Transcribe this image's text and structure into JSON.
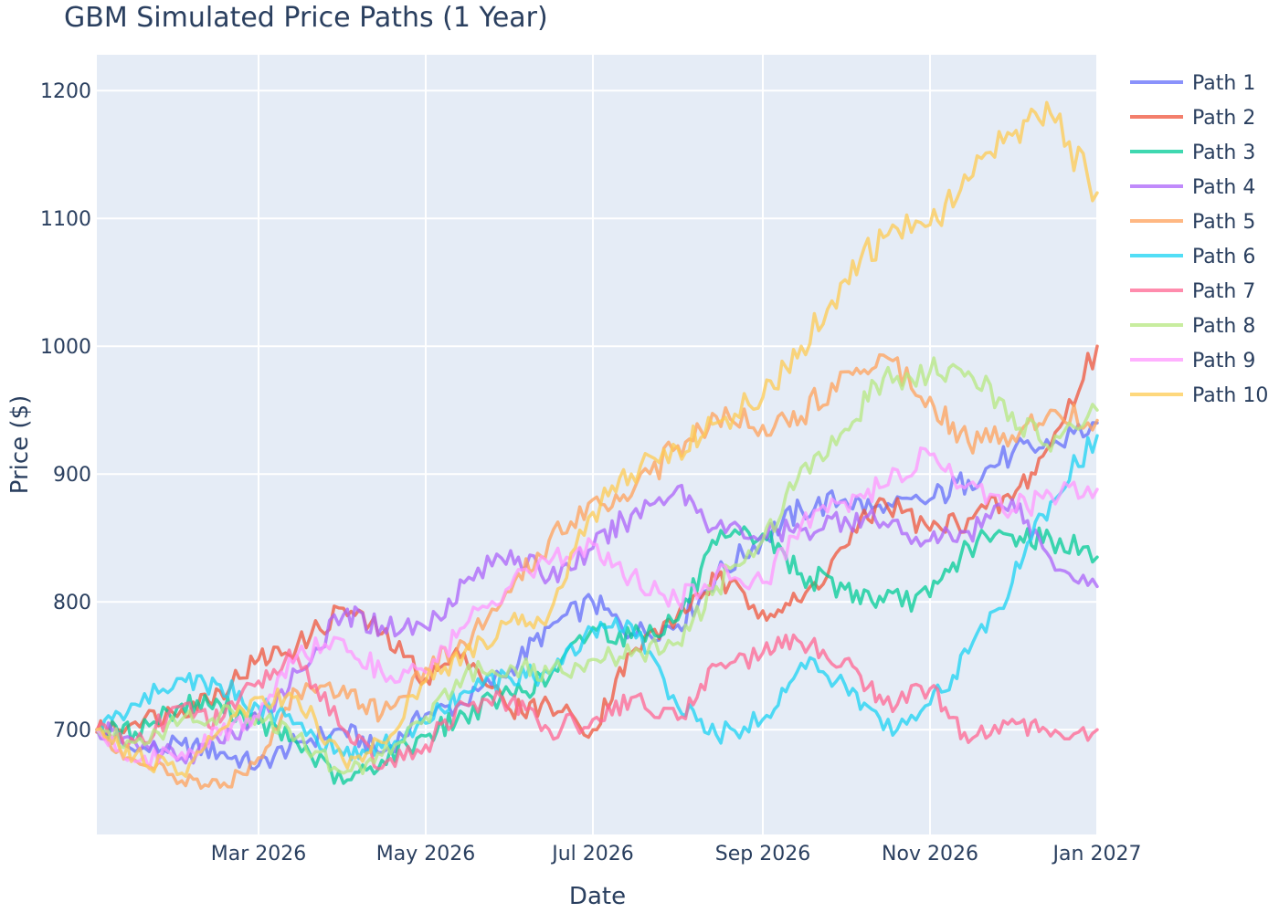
{
  "chart_data": {
    "type": "line",
    "title": "GBM Simulated Price Paths (1 Year)",
    "xlabel": "Date",
    "ylabel": "Price ($)",
    "x_range": [
      "2026-01-01",
      "2027-01-01"
    ],
    "ylim": [
      618,
      1228
    ],
    "x_ticks": [
      {
        "date": "2026-03-01",
        "label": "Mar 2026"
      },
      {
        "date": "2026-05-01",
        "label": "May 2026"
      },
      {
        "date": "2026-07-01",
        "label": "Jul 2026"
      },
      {
        "date": "2026-09-01",
        "label": "Sep 2026"
      },
      {
        "date": "2026-11-01",
        "label": "Nov 2026"
      },
      {
        "date": "2027-01-01",
        "label": "Jan 2027"
      }
    ],
    "y_ticks": [
      700,
      800,
      900,
      1000,
      1100,
      1200
    ],
    "grid": true,
    "legend_position": "right",
    "x_dates": [
      "2026-01-01",
      "2026-01-15",
      "2026-02-01",
      "2026-02-15",
      "2026-03-01",
      "2026-03-15",
      "2026-04-01",
      "2026-04-15",
      "2026-05-01",
      "2026-05-15",
      "2026-06-01",
      "2026-06-15",
      "2026-07-01",
      "2026-07-15",
      "2026-08-01",
      "2026-08-15",
      "2026-09-01",
      "2026-09-15",
      "2026-10-01",
      "2026-10-15",
      "2026-11-01",
      "2026-11-15",
      "2026-12-01",
      "2026-12-15",
      "2027-01-01"
    ],
    "series": [
      {
        "name": "Path 1",
        "color": "#636efa",
        "values": [
          700,
          683,
          688,
          682,
          672,
          690,
          700,
          682,
          712,
          720,
          748,
          780,
          800,
          775,
          782,
          820,
          850,
          872,
          880,
          870,
          880,
          895,
          916,
          922,
          940
        ]
      },
      {
        "name": "Path 2",
        "color": "#ef553b",
        "values": [
          698,
          706,
          716,
          730,
          755,
          765,
          795,
          775,
          740,
          760,
          715,
          720,
          700,
          760,
          790,
          818,
          793,
          800,
          843,
          880,
          856,
          865,
          880,
          922,
          1000
        ]
      },
      {
        "name": "Path 3",
        "color": "#00cc96",
        "values": [
          700,
          698,
          720,
          720,
          705,
          690,
          658,
          676,
          695,
          712,
          728,
          740,
          780,
          772,
          786,
          845,
          853,
          822,
          810,
          800,
          804,
          844,
          852,
          850,
          835
        ]
      },
      {
        "name": "Path 4",
        "color": "#ab63fa",
        "values": [
          700,
          690,
          678,
          690,
          708,
          745,
          790,
          781,
          780,
          815,
          840,
          818,
          842,
          868,
          890,
          858,
          852,
          856,
          866,
          862,
          848,
          855,
          880,
          834,
          812
        ]
      },
      {
        "name": "Path 5",
        "color": "#ffa15a",
        "values": [
          700,
          676,
          660,
          655,
          678,
          730,
          734,
          712,
          748,
          768,
          808,
          848,
          880,
          883,
          922,
          945,
          938,
          945,
          980,
          993,
          960,
          925,
          930,
          950,
          942
        ]
      },
      {
        "name": "Path 6",
        "color": "#19d3f3",
        "values": [
          700,
          720,
          740,
          735,
          718,
          705,
          680,
          686,
          705,
          730,
          740,
          744,
          778,
          782,
          718,
          696,
          708,
          752,
          735,
          700,
          720,
          760,
          815,
          878,
          930
        ]
      },
      {
        "name": "Path 7",
        "color": "#ff6692",
        "values": [
          700,
          690,
          718,
          706,
          738,
          758,
          700,
          670,
          688,
          720,
          722,
          700,
          708,
          725,
          708,
          750,
          760,
          768,
          755,
          720,
          732,
          690,
          708,
          695,
          700
        ]
      },
      {
        "name": "Path 8",
        "color": "#b6e880",
        "values": [
          700,
          690,
          708,
          712,
          712,
          694,
          666,
          680,
          710,
          742,
          750,
          744,
          755,
          758,
          768,
          812,
          848,
          905,
          935,
          975,
          980,
          980,
          948,
          918,
          950
        ]
      },
      {
        "name": "Path 9",
        "color": "#ff97ff",
        "values": [
          700,
          675,
          682,
          696,
          710,
          758,
          770,
          745,
          745,
          780,
          812,
          830,
          845,
          820,
          800,
          822,
          815,
          860,
          878,
          890,
          915,
          892,
          872,
          884,
          888
        ]
      },
      {
        "name": "Path 10",
        "color": "#fecb52",
        "values": [
          700,
          680,
          666,
          700,
          725,
          726,
          676,
          690,
          738,
          760,
          785,
          790,
          870,
          900,
          920,
          940,
          960,
          1000,
          1052,
          1085,
          1095,
          1130,
          1165,
          1182,
          1120
        ]
      }
    ]
  }
}
